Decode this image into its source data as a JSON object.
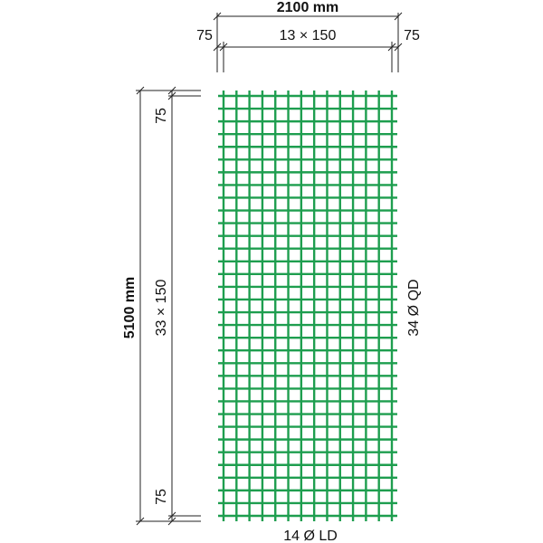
{
  "dimensions": {
    "width": {
      "total": "2100 mm",
      "spacing": "13 × 150",
      "edge_left": "75",
      "edge_right": "75"
    },
    "height": {
      "total": "5100 mm",
      "spacing": "33 × 150",
      "edge_top": "75",
      "edge_bottom": "75"
    }
  },
  "bars": {
    "cross": "34 Ø QD",
    "longitudinal": "14 Ø LD"
  }
}
